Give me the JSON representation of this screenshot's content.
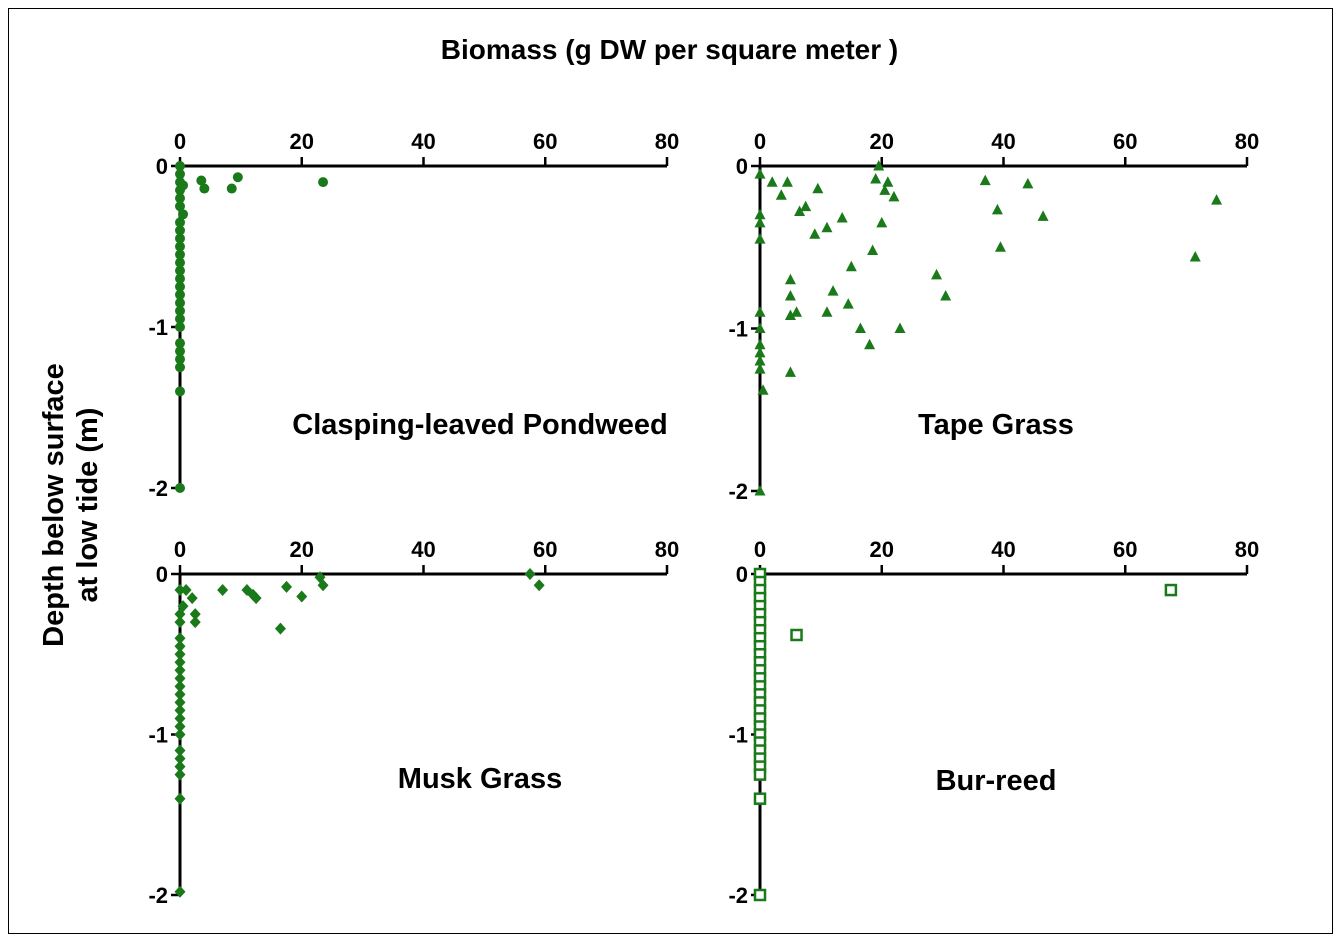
{
  "figure": {
    "title": "Biomass (g DW per square meter )",
    "ylabel_line1": "Depth below surface",
    "ylabel_line2": "at low tide (m)"
  },
  "chart_data": [
    {
      "type": "scatter",
      "panel_label": "Clasping-leaved Pondweed",
      "marker": "circle-filled",
      "color": "#1a7a1a",
      "xlim": [
        0,
        80
      ],
      "ylim": [
        -2,
        0
      ],
      "xticks": [
        0,
        20,
        40,
        60,
        80
      ],
      "yticks": [
        0,
        -1,
        -2
      ],
      "x_axis_position": "top",
      "points": [
        [
          0,
          0
        ],
        [
          0,
          -0.05
        ],
        [
          0,
          -0.1
        ],
        [
          0.5,
          -0.12
        ],
        [
          0,
          -0.15
        ],
        [
          0,
          -0.2
        ],
        [
          0,
          -0.25
        ],
        [
          0.5,
          -0.3
        ],
        [
          0,
          -0.35
        ],
        [
          0,
          -0.4
        ],
        [
          0,
          -0.45
        ],
        [
          0,
          -0.5
        ],
        [
          0,
          -0.55
        ],
        [
          0,
          -0.6
        ],
        [
          0,
          -0.65
        ],
        [
          0,
          -0.7
        ],
        [
          0,
          -0.75
        ],
        [
          0,
          -0.8
        ],
        [
          0,
          -0.85
        ],
        [
          0,
          -0.9
        ],
        [
          0,
          -0.95
        ],
        [
          0,
          -1.0
        ],
        [
          0,
          -1.1
        ],
        [
          0,
          -1.15
        ],
        [
          0,
          -1.2
        ],
        [
          0,
          -1.25
        ],
        [
          0,
          -1.4
        ],
        [
          0,
          -2.0
        ],
        [
          3.5,
          -0.09
        ],
        [
          4,
          -0.14
        ],
        [
          8.5,
          -0.14
        ],
        [
          9.5,
          -0.07
        ],
        [
          23.5,
          -0.1
        ]
      ]
    },
    {
      "type": "scatter",
      "panel_label": "Tape Grass",
      "marker": "triangle-filled",
      "color": "#1a7a1a",
      "xlim": [
        0,
        80
      ],
      "ylim": [
        -2,
        0
      ],
      "xticks": [
        0,
        20,
        40,
        60,
        80
      ],
      "yticks": [
        0,
        -1,
        -2
      ],
      "x_axis_position": "top",
      "points": [
        [
          0,
          -0.05
        ],
        [
          0,
          -0.3
        ],
        [
          0,
          -0.35
        ],
        [
          0,
          -0.45
        ],
        [
          0,
          -0.9
        ],
        [
          0,
          -1.0
        ],
        [
          0,
          -1.1
        ],
        [
          0,
          -1.15
        ],
        [
          0,
          -1.2
        ],
        [
          0,
          -1.25
        ],
        [
          0.5,
          -1.38
        ],
        [
          0,
          -2.0
        ],
        [
          2,
          -0.1
        ],
        [
          3.5,
          -0.18
        ],
        [
          4.5,
          -0.1
        ],
        [
          5,
          -0.7
        ],
        [
          5,
          -0.8
        ],
        [
          5,
          -0.92
        ],
        [
          5,
          -1.27
        ],
        [
          6,
          -0.9
        ],
        [
          6.5,
          -0.28
        ],
        [
          7.5,
          -0.25
        ],
        [
          9,
          -0.42
        ],
        [
          9.5,
          -0.14
        ],
        [
          11,
          -0.38
        ],
        [
          11,
          -0.9
        ],
        [
          12,
          -0.77
        ],
        [
          13.5,
          -0.32
        ],
        [
          14.5,
          -0.85
        ],
        [
          15,
          -0.62
        ],
        [
          16.5,
          -1.0
        ],
        [
          18,
          -1.1
        ],
        [
          18.5,
          -0.52
        ],
        [
          19,
          -0.08
        ],
        [
          19.5,
          0
        ],
        [
          20,
          -0.35
        ],
        [
          20.5,
          -0.15
        ],
        [
          21,
          -0.1
        ],
        [
          22,
          -0.19
        ],
        [
          23,
          -1.0
        ],
        [
          29,
          -0.67
        ],
        [
          30.5,
          -0.8
        ],
        [
          37,
          -0.09
        ],
        [
          39,
          -0.27
        ],
        [
          39.5,
          -0.5
        ],
        [
          44,
          -0.11
        ],
        [
          46.5,
          -0.31
        ],
        [
          71.5,
          -0.56
        ],
        [
          75,
          -0.21
        ]
      ]
    },
    {
      "type": "scatter",
      "panel_label": "Musk Grass",
      "marker": "diamond-filled",
      "color": "#1a7a1a",
      "xlim": [
        0,
        80
      ],
      "ylim": [
        -2,
        0
      ],
      "xticks": [
        0,
        20,
        40,
        60,
        80
      ],
      "yticks": [
        0,
        -1,
        -2
      ],
      "x_axis_position": "top",
      "points": [
        [
          0,
          -0.1
        ],
        [
          0.5,
          -0.2
        ],
        [
          0,
          -0.25
        ],
        [
          0,
          -0.3
        ],
        [
          0,
          -0.4
        ],
        [
          0,
          -0.45
        ],
        [
          0,
          -0.5
        ],
        [
          0,
          -0.55
        ],
        [
          0,
          -0.6
        ],
        [
          0,
          -0.65
        ],
        [
          0,
          -0.7
        ],
        [
          0,
          -0.75
        ],
        [
          0,
          -0.8
        ],
        [
          0,
          -0.85
        ],
        [
          0,
          -0.9
        ],
        [
          0,
          -0.95
        ],
        [
          0,
          -1.0
        ],
        [
          0,
          -1.1
        ],
        [
          0,
          -1.15
        ],
        [
          0,
          -1.2
        ],
        [
          0,
          -1.25
        ],
        [
          0,
          -1.4
        ],
        [
          0,
          -1.98
        ],
        [
          1,
          -0.1
        ],
        [
          2,
          -0.15
        ],
        [
          2.5,
          -0.3
        ],
        [
          2.5,
          -0.25
        ],
        [
          7,
          -0.1
        ],
        [
          11,
          -0.1
        ],
        [
          12,
          -0.13
        ],
        [
          12.5,
          -0.15
        ],
        [
          16.5,
          -0.34
        ],
        [
          17.5,
          -0.08
        ],
        [
          20,
          -0.14
        ],
        [
          23,
          -0.02
        ],
        [
          23.5,
          -0.07
        ],
        [
          57.5,
          0
        ],
        [
          59,
          -0.07
        ]
      ]
    },
    {
      "type": "scatter",
      "panel_label": "Bur-reed",
      "marker": "square-open",
      "color": "#1a7a1a",
      "xlim": [
        0,
        80
      ],
      "ylim": [
        -2,
        0
      ],
      "xticks": [
        0,
        20,
        40,
        60,
        80
      ],
      "yticks": [
        0,
        -1,
        -2
      ],
      "x_axis_position": "top",
      "points": [
        [
          0,
          0
        ],
        [
          0,
          -0.05
        ],
        [
          0,
          -0.1
        ],
        [
          0,
          -0.15
        ],
        [
          0,
          -0.2
        ],
        [
          0,
          -0.25
        ],
        [
          0,
          -0.3
        ],
        [
          0,
          -0.35
        ],
        [
          0,
          -0.4
        ],
        [
          0,
          -0.45
        ],
        [
          0,
          -0.5
        ],
        [
          0,
          -0.55
        ],
        [
          0,
          -0.6
        ],
        [
          0,
          -0.65
        ],
        [
          0,
          -0.7
        ],
        [
          0,
          -0.75
        ],
        [
          0,
          -0.8
        ],
        [
          0,
          -0.85
        ],
        [
          0,
          -0.9
        ],
        [
          0,
          -0.95
        ],
        [
          0,
          -1.0
        ],
        [
          0,
          -1.05
        ],
        [
          0,
          -1.1
        ],
        [
          0,
          -1.15
        ],
        [
          0,
          -1.2
        ],
        [
          0,
          -1.25
        ],
        [
          0,
          -1.4
        ],
        [
          0,
          -2.0
        ],
        [
          6,
          -0.38
        ],
        [
          67.5,
          -0.1
        ]
      ]
    }
  ]
}
